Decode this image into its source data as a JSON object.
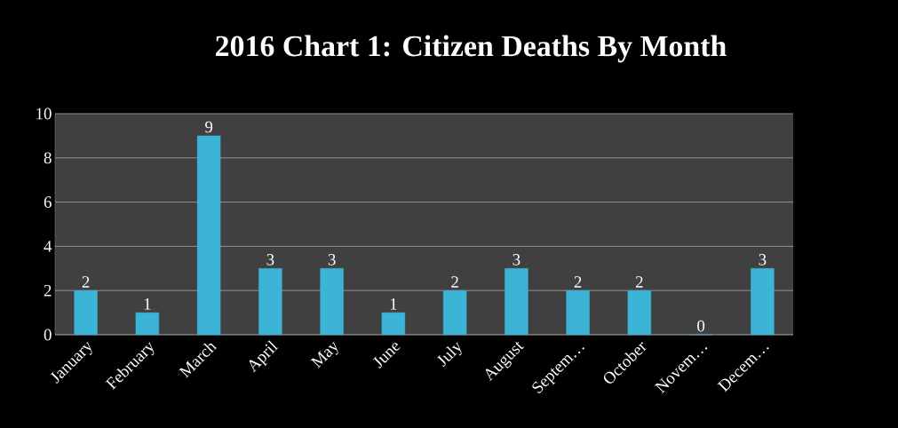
{
  "chart_data": {
    "type": "bar",
    "title": "2016 Chart 1: Citizen Deaths By Month",
    "categories": [
      "January",
      "February",
      "March",
      "April",
      "May",
      "June",
      "July",
      "August",
      "Septem…",
      "October",
      "Novem…",
      "Decem…"
    ],
    "values": [
      2,
      1,
      9,
      3,
      3,
      1,
      2,
      3,
      2,
      2,
      0,
      3
    ],
    "color": "#3cb4d8",
    "ylim": [
      0,
      10
    ],
    "yticks": [
      0,
      2,
      4,
      6,
      8,
      10
    ],
    "grid": "y",
    "data_labels": true
  }
}
